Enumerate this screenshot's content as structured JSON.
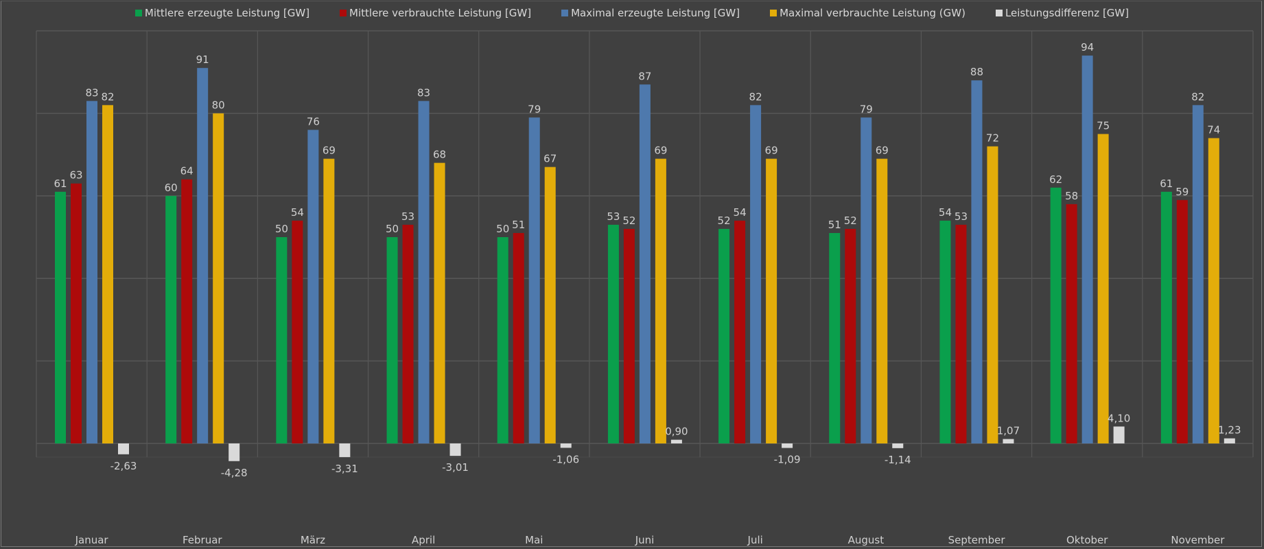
{
  "chart_data": {
    "type": "bar",
    "title": "",
    "xlabel": "",
    "ylabel": "",
    "ylim": [
      -17,
      100
    ],
    "grid": true,
    "legend_position": "top-center",
    "categories": [
      "Januar",
      "Februar",
      "März",
      "April",
      "Mai",
      "Juni",
      "Juli",
      "August",
      "September",
      "Oktober",
      "November"
    ],
    "series": [
      {
        "name": "Mittlere erzeugte Leistung [GW]",
        "color": "#0a9f4c",
        "values": [
          61,
          60,
          50,
          50,
          50,
          53,
          52,
          51,
          54,
          62,
          61
        ],
        "labels": [
          "61",
          "60",
          "50",
          "50",
          "50",
          "53",
          "52",
          "51",
          "54",
          "62",
          "61"
        ]
      },
      {
        "name": "Mittlere verbrauchte Leistung [GW]",
        "color": "#ad0a0a",
        "values": [
          63,
          64,
          54,
          53,
          51,
          52,
          54,
          52,
          53,
          58,
          59
        ],
        "labels": [
          "63",
          "64",
          "54",
          "53",
          "51",
          "52",
          "54",
          "52",
          "53",
          "58",
          "59"
        ]
      },
      {
        "name": "Maximal erzeugte Leistung [GW]",
        "color": "#4e79ad",
        "values": [
          83,
          91,
          76,
          83,
          79,
          87,
          82,
          79,
          88,
          94,
          82
        ],
        "labels": [
          "83",
          "91",
          "76",
          "83",
          "79",
          "87",
          "82",
          "79",
          "88",
          "94",
          "82"
        ]
      },
      {
        "name": "Maximal verbrauchte Leistung (GW)",
        "color": "#e3ad0a",
        "values": [
          82,
          80,
          69,
          68,
          67,
          69,
          69,
          69,
          72,
          75,
          74
        ],
        "labels": [
          "82",
          "80",
          "69",
          "68",
          "67",
          "69",
          "69",
          "69",
          "72",
          "75",
          "74"
        ]
      },
      {
        "name": "Leistungsdifferenz [GW]",
        "color": "#d9d9d9",
        "values": [
          -2.63,
          -4.28,
          -3.31,
          -3.01,
          -1.06,
          0.9,
          -1.09,
          -1.14,
          1.07,
          4.1,
          1.23
        ],
        "labels": [
          "-2,63",
          "-4,28",
          "-3,31",
          "-3,01",
          "-1,06",
          "0,90",
          "-1,09",
          "-1,14",
          "1,07",
          "4,10",
          "1,23"
        ]
      }
    ]
  },
  "colors": {
    "background": "#404040",
    "grid": "#575757",
    "text": "#d0d0d0"
  }
}
